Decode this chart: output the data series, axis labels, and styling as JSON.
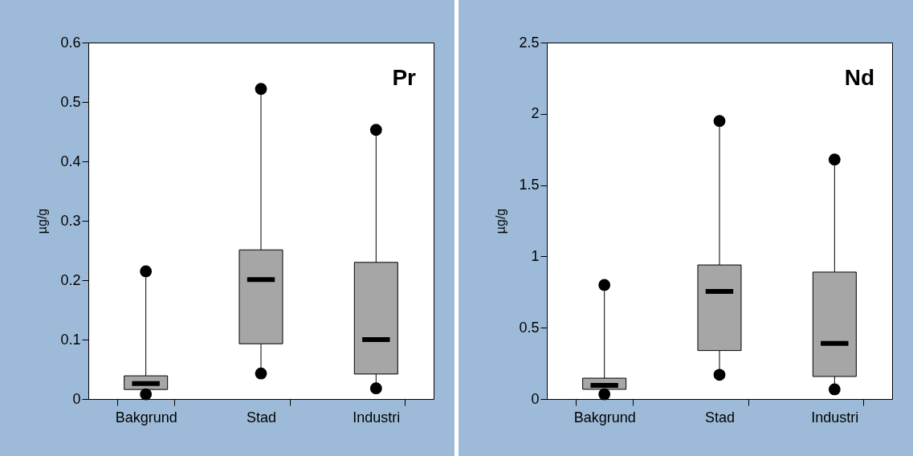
{
  "chart_data": [
    {
      "type": "box",
      "title": "Pr",
      "ylabel": "µg/g",
      "categories": [
        "Bakgrund",
        "Stad",
        "Industri"
      ],
      "color": "#a6a6a6",
      "marker": "circle",
      "grid": false,
      "ylim": [
        0,
        0.6
      ],
      "yticks": [
        0,
        0.1,
        0.2,
        0.3,
        0.4,
        0.5,
        0.6
      ],
      "boxes": [
        {
          "low": 0.008,
          "q1": 0.016,
          "median": 0.026,
          "q3": 0.039,
          "high": 0.215
        },
        {
          "low": 0.043,
          "q1": 0.093,
          "median": 0.201,
          "q3": 0.251,
          "high": 0.522
        },
        {
          "low": 0.018,
          "q1": 0.042,
          "median": 0.1,
          "q3": 0.23,
          "high": 0.453
        }
      ],
      "series": [
        {
          "type": "scatter",
          "color": "#000000",
          "x": [
            "Bakgrund",
            "Stad",
            "Industri",
            "Bakgrund",
            "Stad",
            "Industri"
          ],
          "values": [
            0.008,
            0.043,
            0.018,
            0.215,
            0.522,
            0.453
          ]
        }
      ]
    },
    {
      "type": "box",
      "title": "Nd",
      "ylabel": "µg/g",
      "categories": [
        "Bakgrund",
        "Stad",
        "Industri"
      ],
      "color": "#a6a6a6",
      "marker": "circle",
      "grid": false,
      "ylim": [
        0,
        2.5
      ],
      "yticks": [
        0,
        0.5,
        1,
        1.5,
        2,
        2.5
      ],
      "boxes": [
        {
          "low": 0.034,
          "q1": 0.068,
          "median": 0.096,
          "q3": 0.146,
          "high": 0.8
        },
        {
          "low": 0.17,
          "q1": 0.34,
          "median": 0.755,
          "q3": 0.94,
          "high": 1.95
        },
        {
          "low": 0.068,
          "q1": 0.158,
          "median": 0.39,
          "q3": 0.89,
          "high": 1.68
        }
      ],
      "series": [
        {
          "type": "scatter",
          "color": "#000000",
          "x": [
            "Bakgrund",
            "Stad",
            "Industri",
            "Bakgrund",
            "Stad",
            "Industri"
          ],
          "values": [
            0.034,
            0.17,
            0.068,
            0.8,
            1.95,
            1.68
          ]
        }
      ]
    }
  ]
}
